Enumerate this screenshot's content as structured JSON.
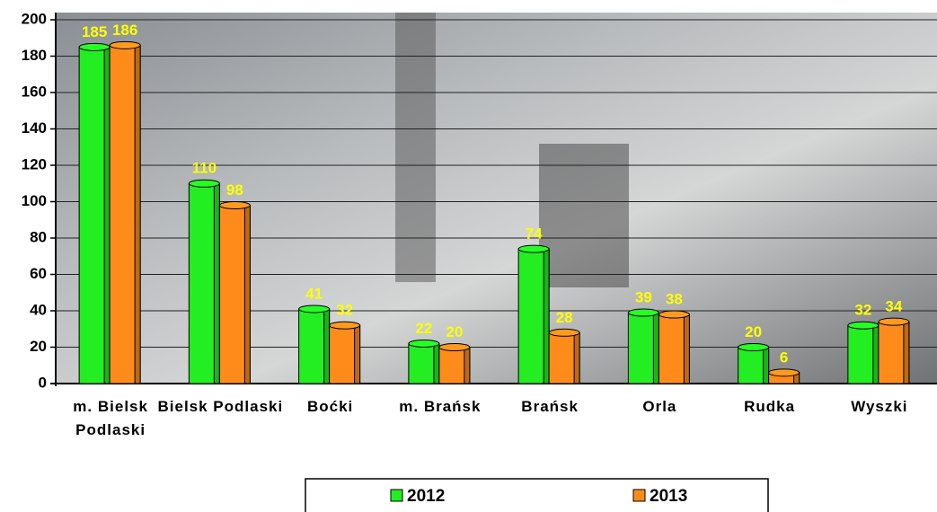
{
  "chart_data": {
    "type": "bar",
    "categories": [
      "m. Bielsk Podlaski",
      "Bielsk Podlaski",
      "Boćki",
      "m. Brańsk",
      "Brańsk",
      "Orla",
      "Rudka",
      "Wyszki"
    ],
    "series": [
      {
        "name": "2012",
        "color": "#22ee22",
        "values": [
          185,
          110,
          41,
          22,
          74,
          39,
          20,
          32
        ]
      },
      {
        "name": "2013",
        "color": "#ff8c1a",
        "values": [
          186,
          98,
          32,
          20,
          28,
          38,
          6,
          34
        ]
      }
    ],
    "ylim": [
      0,
      200
    ],
    "yticks": [
      0,
      20,
      40,
      60,
      80,
      100,
      120,
      140,
      160,
      180,
      200
    ],
    "grid": true,
    "legend": "bottom"
  }
}
